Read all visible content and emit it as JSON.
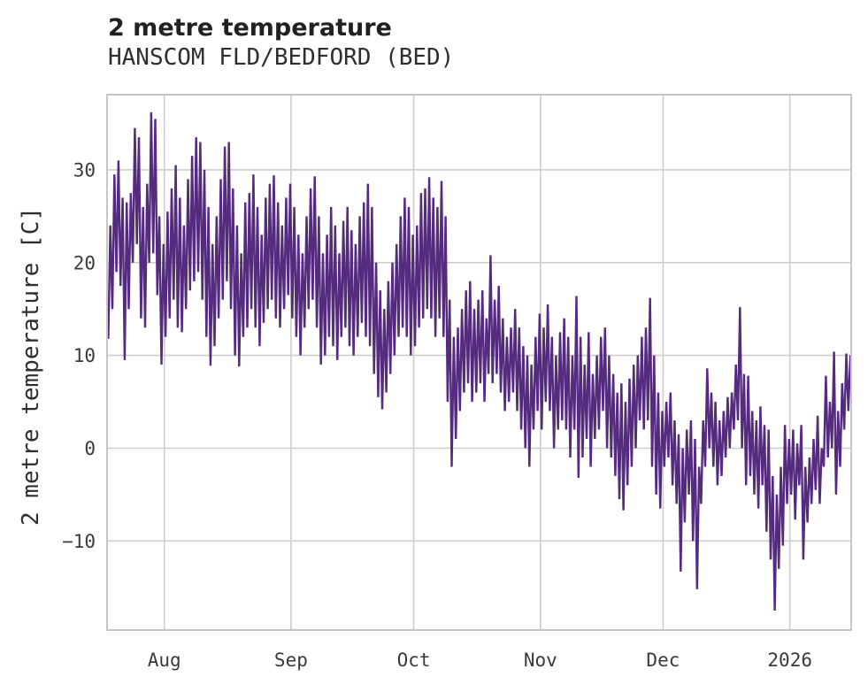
{
  "header": {
    "title": "2 metre temperature",
    "subtitle": "HANSCOM FLD/BEDFORD (BED)"
  },
  "chart_data": {
    "type": "line",
    "title": "2 metre temperature",
    "subtitle": "HANSCOM FLD/BEDFORD (BED)",
    "ylabel": "2 metre temperature [C]",
    "xlabel": "",
    "legend_position": "none",
    "grid": true,
    "line_color": "#542b7e",
    "grid_color": "#cdcdcd",
    "axis_box_color": "#c6c6c6",
    "background_color": "#ffffff",
    "ylim": [
      -19.6,
      38.1
    ],
    "xlim_days": [
      0,
      182
    ],
    "y_ticks": [
      {
        "value": 30,
        "label": "30"
      },
      {
        "value": 20,
        "label": "20"
      },
      {
        "value": 10,
        "label": "10"
      },
      {
        "value": 0,
        "label": "0"
      },
      {
        "value": -10,
        "label": "−10"
      }
    ],
    "x_ticks": [
      {
        "day": 14,
        "label": "Aug"
      },
      {
        "day": 45,
        "label": "Sep"
      },
      {
        "day": 75,
        "label": "Oct"
      },
      {
        "day": 106,
        "label": "Nov"
      },
      {
        "day": 136,
        "label": "Dec"
      },
      {
        "day": 167,
        "label": "2026"
      }
    ],
    "series_note": "hourly 2 m temperature, approximated as daily min/max pairs; day 0 = chart left edge (mid-July), ticks mark month starts",
    "daily_min": [
      11.8,
      15,
      19,
      17.5,
      9.5,
      15,
      20,
      22,
      14,
      13,
      20,
      21,
      16.5,
      9,
      12,
      14,
      16,
      13,
      12.5,
      15,
      17,
      18,
      19,
      16,
      12,
      8.9,
      11,
      14,
      16,
      18,
      15,
      10,
      8.8,
      12,
      13,
      15,
      13,
      11,
      13.5,
      15,
      16,
      14,
      13,
      15,
      16.5,
      14,
      12,
      10,
      13,
      15,
      16,
      13,
      9,
      10,
      12,
      11,
      9.5,
      12,
      13,
      11,
      10,
      12,
      13.5,
      12,
      11,
      8,
      5.5,
      4.2,
      6,
      8,
      10,
      12,
      13,
      12,
      10,
      11,
      13,
      14,
      15,
      14,
      12,
      14,
      12,
      5,
      -2,
      1,
      4,
      6,
      7,
      5,
      6,
      7,
      5,
      8,
      7,
      8,
      6,
      4,
      5,
      6,
      4,
      2,
      0,
      -2,
      2,
      4,
      2,
      5,
      4,
      0,
      2,
      3,
      2,
      -1,
      2,
      -3.2,
      -1,
      1,
      -2,
      1,
      2,
      4,
      0,
      -1,
      -3,
      -5.5,
      -6.7,
      -4,
      -2,
      0,
      3,
      2,
      3,
      -2,
      -5,
      -6.5,
      -2,
      -1,
      -4,
      -6,
      -13.3,
      -8,
      -5,
      -10,
      -15.2,
      -6,
      -2,
      0,
      -2,
      -4,
      -3,
      -1,
      0,
      2,
      3,
      0,
      -4,
      -3,
      -5,
      -6.5,
      -4,
      -9,
      -12,
      -17.5,
      -13,
      -10.5,
      -6,
      -5,
      -7.7,
      -4,
      -12,
      -8,
      -6,
      -4.5,
      -6,
      -2,
      -1,
      0,
      -5,
      -2,
      2,
      4
    ],
    "daily_max": [
      24,
      29.5,
      31,
      27,
      26.5,
      27.5,
      34.5,
      33.5,
      26,
      28.5,
      36.2,
      35.5,
      25,
      22,
      25.5,
      28,
      30.5,
      27,
      24,
      29,
      31.5,
      33.5,
      33,
      30,
      26,
      22,
      25,
      29,
      32.5,
      33,
      28,
      24,
      21,
      26.5,
      27.5,
      29.5,
      26,
      23,
      27,
      28.5,
      29.4,
      26.5,
      24,
      27,
      28.5,
      26,
      23,
      21,
      25,
      28,
      29.3,
      25,
      21,
      23,
      26,
      24,
      21,
      24.5,
      26,
      23.5,
      22,
      25,
      26.5,
      28.5,
      26,
      20,
      17,
      15,
      18,
      20,
      22,
      25,
      27,
      26,
      23,
      24,
      27.5,
      28,
      29.2,
      27,
      26,
      28.8,
      25,
      16,
      12,
      13,
      15,
      17,
      18,
      15,
      16,
      17,
      14,
      20.8,
      16,
      17.5,
      14,
      12,
      13,
      15,
      13,
      11,
      10,
      9,
      12,
      14.5,
      13,
      15.5,
      12,
      10,
      12.5,
      14,
      12,
      10,
      16.4,
      12,
      9,
      12.5,
      8,
      10,
      12,
      13,
      10,
      8,
      6,
      7,
      5,
      7.5,
      9,
      10,
      12,
      13,
      16.2,
      10,
      6,
      4,
      5,
      6,
      3,
      1.5,
      0,
      2,
      3,
      1,
      -2,
      3,
      8.6,
      6,
      5,
      3,
      4,
      5.5,
      6,
      9,
      15.2,
      8,
      7.8,
      4,
      3,
      4.5,
      2.5,
      2,
      -3,
      -5,
      -2,
      2.5,
      1,
      2,
      0.5,
      2.5,
      -2,
      -1,
      1,
      3.5,
      0,
      7.8,
      5,
      10.4,
      4,
      7,
      10.2,
      10
    ]
  }
}
